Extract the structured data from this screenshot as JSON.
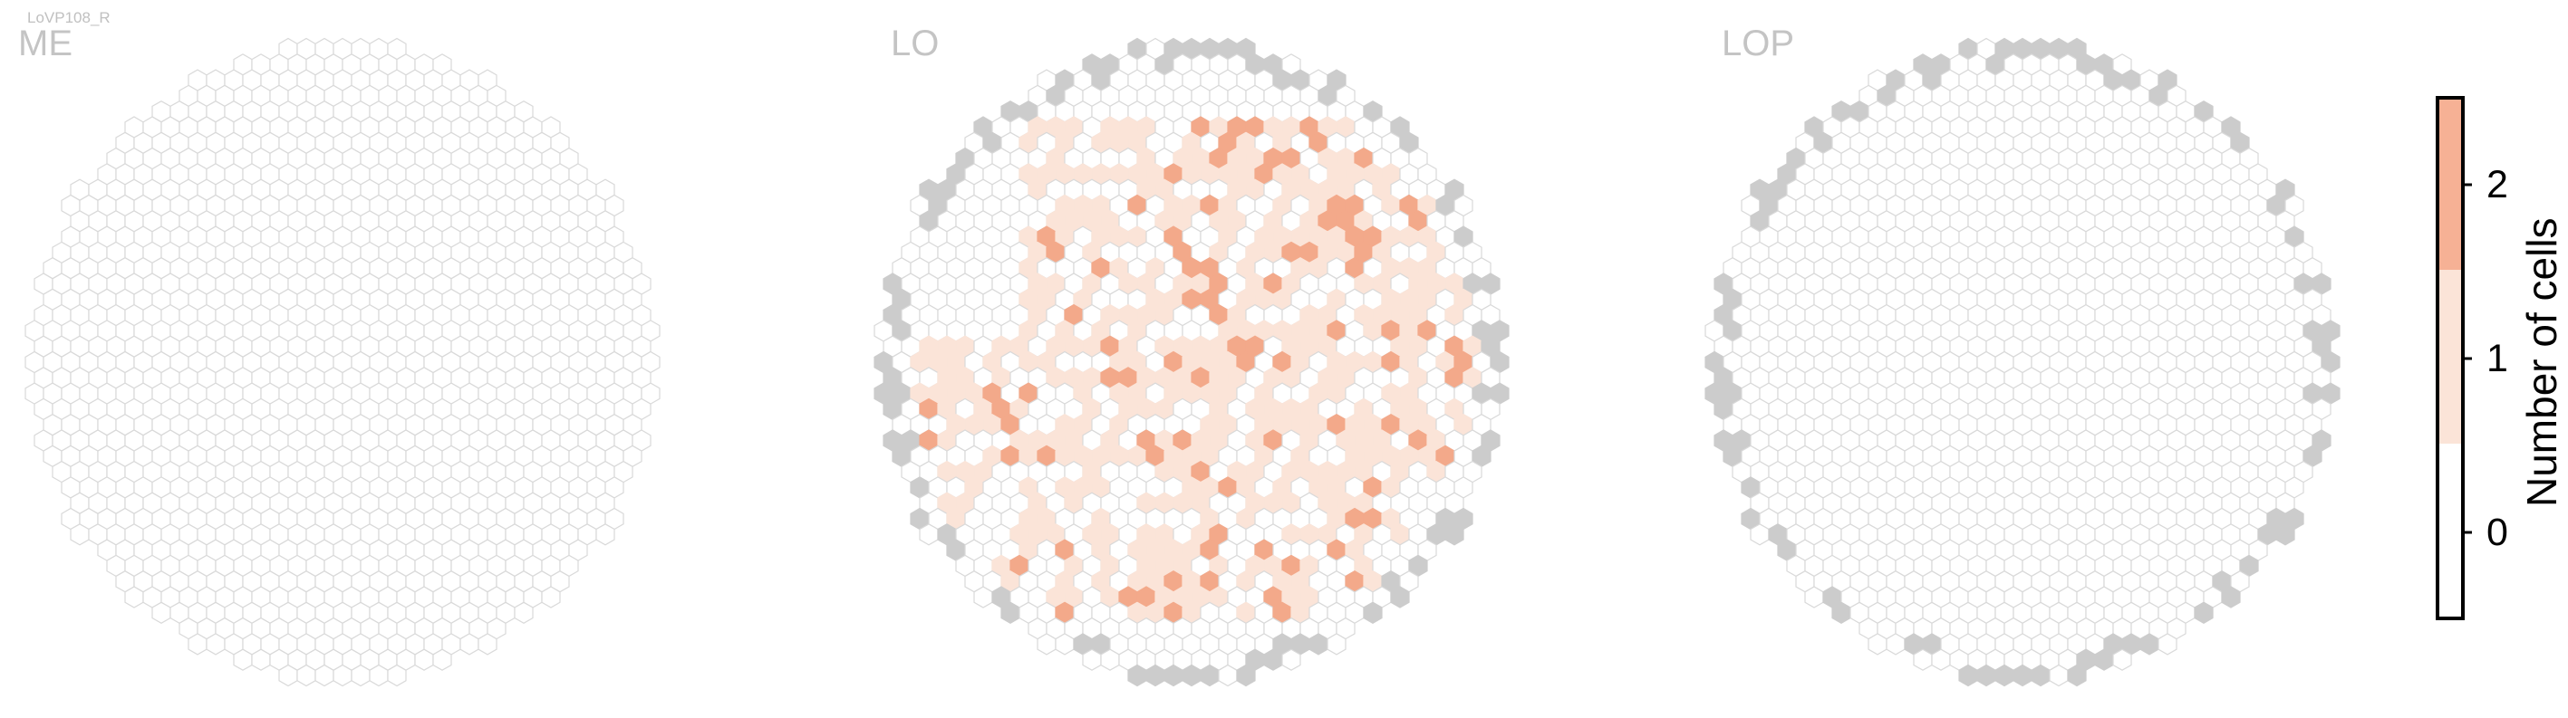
{
  "cell_type_label": "LoVP108_R",
  "colors": {
    "zero_stroke": "#d9d9d9",
    "edge_fill": "#cccccc",
    "level1_fill": "#fbe4d8",
    "level2_fill": "#f3a98a",
    "colorbar_top": "#f6b195"
  },
  "chart_data": {
    "type": "heatmap",
    "panels": [
      {
        "name": "ME",
        "value_counts": {
          "0": "all",
          "1": 0,
          "2": 0
        }
      },
      {
        "name": "LO",
        "value_counts": {
          "0": "most",
          "1": "many",
          "2": 34
        }
      },
      {
        "name": "LOP",
        "value_counts": {
          "0": "all",
          "1": 0,
          "2": 0
        }
      }
    ],
    "colorbar": {
      "label": "Number of cells",
      "ticks": [
        "2",
        "1",
        "0"
      ],
      "range": [
        -0.5,
        2.5
      ],
      "bins": [
        {
          "from": -0.5,
          "to": 0.5,
          "value": 0
        },
        {
          "from": 0.5,
          "to": 1.5,
          "value": 1
        },
        {
          "from": 1.5,
          "to": 2.5,
          "value": 2
        }
      ]
    }
  }
}
